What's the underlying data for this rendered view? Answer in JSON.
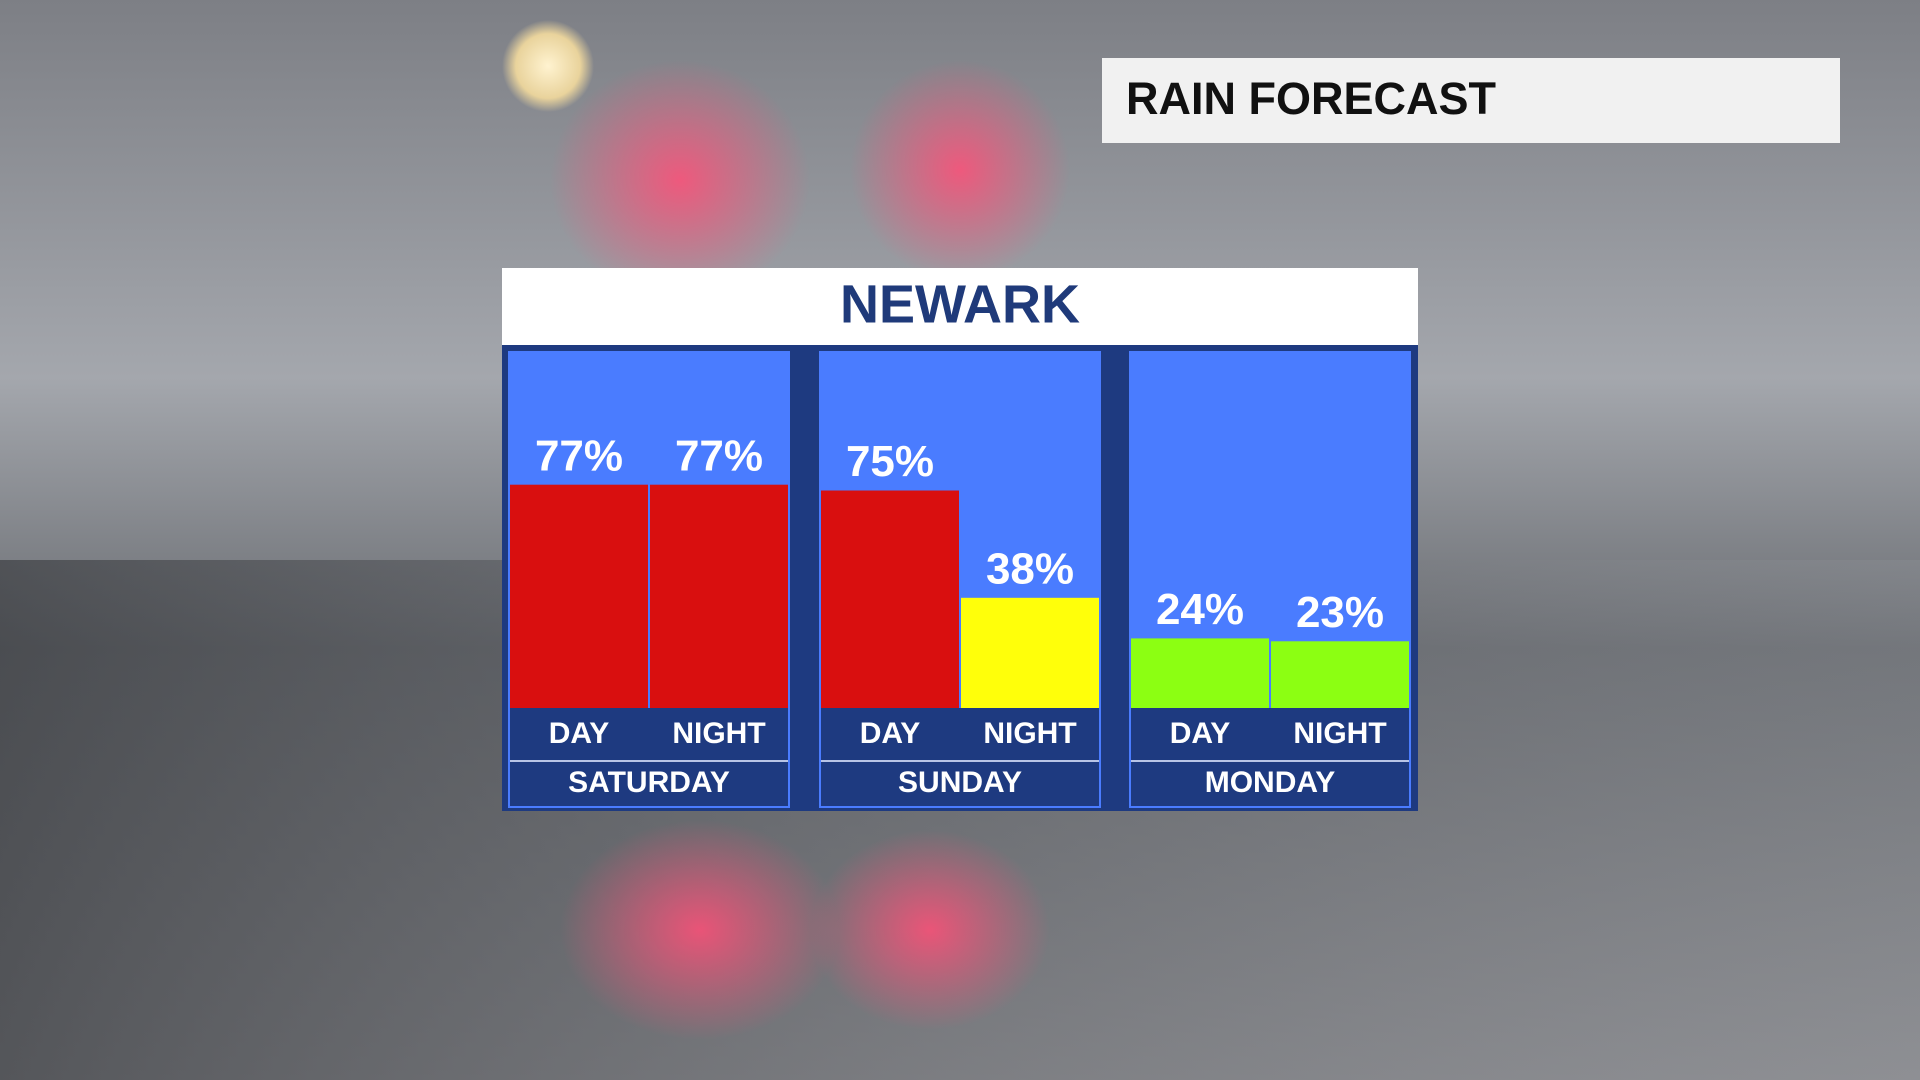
{
  "chart_data": {
    "type": "bar",
    "header": "RAIN FORECAST",
    "title": "NEWARK",
    "groups": [
      {
        "name": "SATURDAY",
        "categories": [
          "DAY",
          "NIGHT"
        ],
        "values": [
          77,
          77
        ],
        "value_labels": [
          "77%",
          "77%"
        ],
        "colors": [
          "#d90f0f",
          "#d90f0f"
        ]
      },
      {
        "name": "SUNDAY",
        "categories": [
          "DAY",
          "NIGHT"
        ],
        "values": [
          75,
          38
        ],
        "value_labels": [
          "75%",
          "38%"
        ],
        "colors": [
          "#d90f0f",
          "#ffff0a"
        ]
      },
      {
        "name": "MONDAY",
        "categories": [
          "DAY",
          "NIGHT"
        ],
        "values": [
          24,
          23
        ],
        "value_labels": [
          "24%",
          "23%"
        ],
        "colors": [
          "#8cff12",
          "#8cff12"
        ]
      }
    ]
  }
}
